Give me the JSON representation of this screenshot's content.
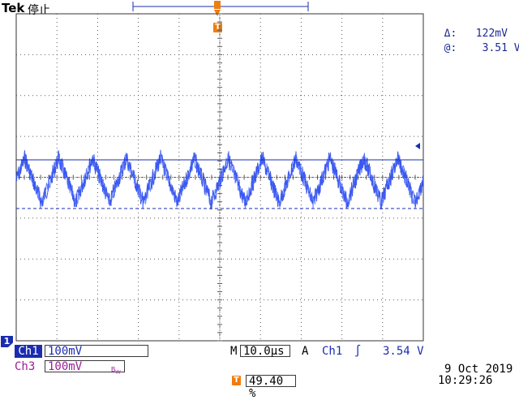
{
  "header": {
    "brand": "Tek",
    "status": "停止"
  },
  "cursor_readout": {
    "delta_symbol": "Δ:",
    "delta_value": "122mV",
    "at_symbol": "@:",
    "at_value": "3.51 V"
  },
  "trigger_marker": {
    "label": "T"
  },
  "channel_marker": {
    "label": "1"
  },
  "bottom": {
    "ch1_label": "Ch1",
    "ch1_scale": "100mV",
    "ch3_label": "Ch3",
    "ch3_scale": "100mV",
    "bandwidth_label": "B",
    "bandwidth_sub": "W",
    "timebase_prefix": "M",
    "timebase": "10.0µs",
    "trigger_mode": "A",
    "trigger_source": "Ch1",
    "trigger_slope": "∫",
    "trigger_level": "3.54 V",
    "trigger_position_label": "T",
    "trigger_position": "49.40 %",
    "date": "9 Oct  2019",
    "time": "10:29:26"
  },
  "colors": {
    "ch1": "#1b2cb0",
    "ch3": "#9b1e9b",
    "trigger": "#f07d10",
    "grid": "#5a5a5a",
    "waveform": "#2040e0"
  },
  "waveform": {
    "cycles": 12,
    "shape": "ramp with noise",
    "cursor_upper_mV": 122,
    "cursor_lower_mV": 0
  }
}
